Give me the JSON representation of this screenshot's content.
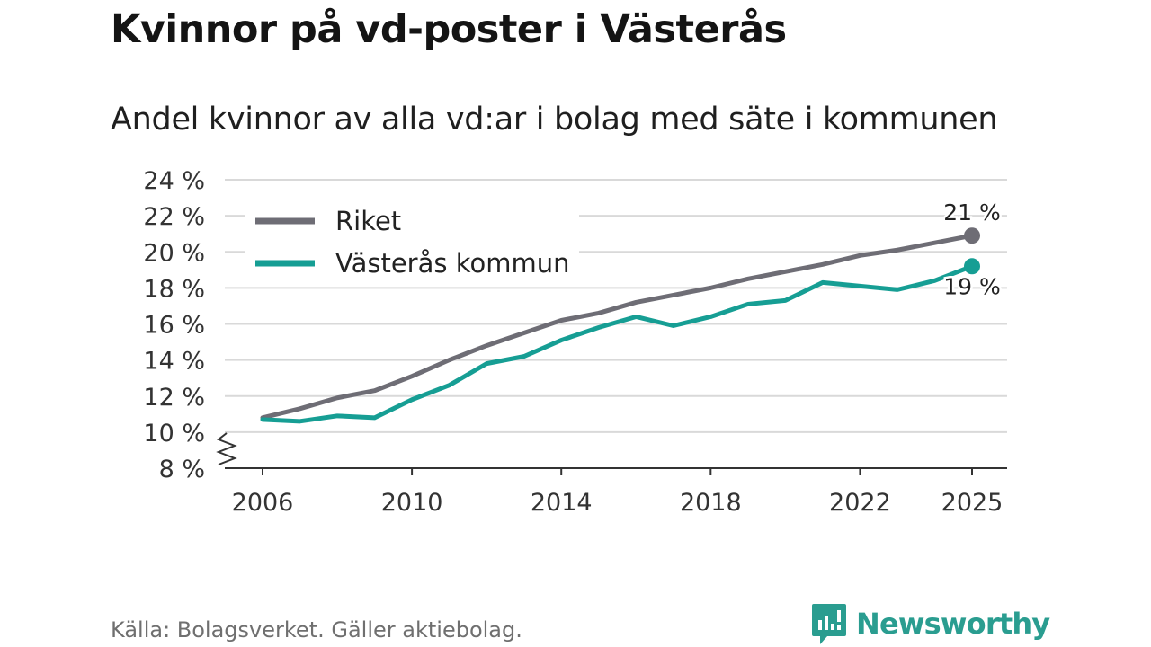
{
  "header": {
    "title": "Kvinnor på vd-poster i Västerås",
    "subtitle": "Andel kvinnor av alla vd:ar i bolag med säte i kommunen"
  },
  "footer": {
    "source": "Källa: Bolagsverket. Gäller aktiebolag.",
    "brand": "Newsworthy",
    "brand_icon": "newsworthy-logo-icon"
  },
  "colors": {
    "riket": "#6e6d75",
    "vasteras": "#169e94",
    "grid": "#d9d9d9",
    "axis": "#333333",
    "brand": "#2a9d90"
  },
  "chart_data": {
    "type": "line",
    "title": "Andel kvinnor av alla vd:ar i bolag med säte i kommunen",
    "xlabel": "",
    "ylabel": "",
    "x": [
      2006,
      2007,
      2008,
      2009,
      2010,
      2011,
      2012,
      2013,
      2014,
      2015,
      2016,
      2017,
      2018,
      2019,
      2020,
      2021,
      2022,
      2023,
      2024,
      2025
    ],
    "ylim": [
      8,
      24
    ],
    "xlim": [
      2006,
      2025
    ],
    "y_ticks": [
      8,
      10,
      12,
      14,
      16,
      18,
      20,
      22,
      24
    ],
    "y_tick_labels": [
      "8 %",
      "10 %",
      "12 %",
      "14 %",
      "16 %",
      "18 %",
      "20 %",
      "22 %",
      "24 %"
    ],
    "x_ticks": [
      2006,
      2010,
      2014,
      2018,
      2022,
      2025
    ],
    "x_tick_labels": [
      "2006",
      "2010",
      "2014",
      "2018",
      "2022",
      "2025"
    ],
    "axis_break": true,
    "grid": true,
    "legend_position": "top-left",
    "series": [
      {
        "name": "Riket",
        "color_key": "riket",
        "values": [
          10.8,
          11.3,
          11.9,
          12.3,
          13.1,
          14.0,
          14.8,
          15.5,
          16.2,
          16.6,
          17.2,
          17.6,
          18.0,
          18.5,
          18.9,
          19.3,
          19.8,
          20.1,
          20.5,
          20.9
        ],
        "end_label": "21 %"
      },
      {
        "name": "Västerås kommun",
        "color_key": "vasteras",
        "values": [
          10.7,
          10.6,
          10.9,
          10.8,
          11.8,
          12.6,
          13.8,
          14.2,
          15.1,
          15.8,
          16.4,
          15.9,
          16.4,
          17.1,
          17.3,
          18.3,
          18.1,
          17.9,
          18.4,
          19.2
        ],
        "end_label": "19 %"
      }
    ]
  }
}
